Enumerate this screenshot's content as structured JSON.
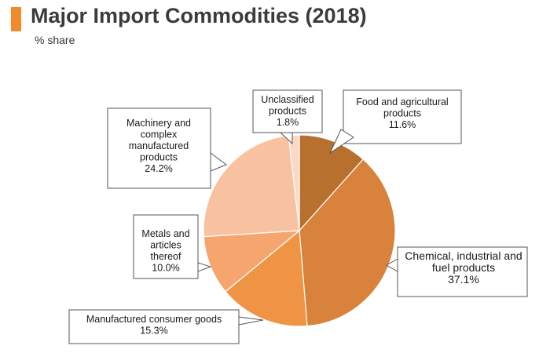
{
  "header": {
    "title": "Major Import Commodities (2018)",
    "subtitle": "% share",
    "accent_color": "#f08a2b"
  },
  "chart_data": {
    "type": "pie",
    "title": "Major Import Commodities (2018)",
    "subtitle": "% share",
    "start": "12 o'clock",
    "direction": "clockwise",
    "slices": [
      {
        "lines": [
          "Food and agricultural",
          "products",
          "11.6%"
        ],
        "value": 11.6,
        "color": "#b8702f"
      },
      {
        "lines": [
          "Chemical, industrial and",
          "fuel products",
          "37.1%"
        ],
        "value": 37.1,
        "color": "#d9823c"
      },
      {
        "lines": [
          "Manufactured consumer goods",
          "15.3%"
        ],
        "value": 15.3,
        "color": "#ef9445"
      },
      {
        "lines": [
          "Metals and",
          "articles",
          "thereof",
          "10.0%"
        ],
        "value": 10.0,
        "color": "#f6a56e"
      },
      {
        "lines": [
          "Machinery and",
          "complex",
          "manufactured",
          "products",
          "24.2%"
        ],
        "value": 24.2,
        "color": "#f8c2a0"
      },
      {
        "lines": [
          "Unclassified",
          "products",
          "1.8%"
        ],
        "value": 1.8,
        "color": "#fcd9c6"
      }
    ]
  }
}
